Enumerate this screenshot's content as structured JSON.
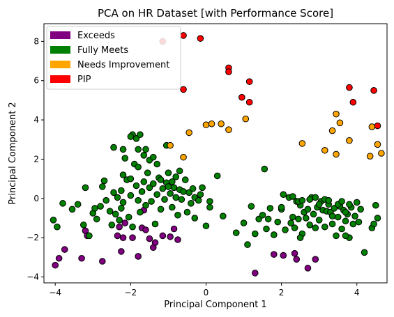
{
  "chart_data": {
    "type": "scatter",
    "title": "PCA on HR Dataset [with Performance Score]",
    "xlabel": "Principal Component 1",
    "ylabel": "Principal Component 2",
    "xlim": [
      -4.3,
      4.8
    ],
    "ylim": [
      -4.3,
      8.9
    ],
    "xticks": [
      -4,
      -2,
      0,
      2,
      4
    ],
    "yticks": [
      -4,
      -2,
      0,
      2,
      4,
      6,
      8
    ],
    "grid": false,
    "legend_position": "top-left",
    "series": [
      {
        "name": "Exceeds",
        "color": "#800080",
        "points": [
          [
            -4.0,
            -3.4
          ],
          [
            -3.9,
            -3.05
          ],
          [
            -3.75,
            -2.6
          ],
          [
            -3.3,
            -3.05
          ],
          [
            -3.2,
            -1.65
          ],
          [
            -3.15,
            -1.9
          ],
          [
            -2.75,
            -3.2
          ],
          [
            -2.35,
            -1.9
          ],
          [
            -2.3,
            -1.45
          ],
          [
            -2.25,
            -2.7
          ],
          [
            -2.2,
            -2.0
          ],
          [
            -2.15,
            -1.25
          ],
          [
            -1.95,
            -2.0
          ],
          [
            -1.8,
            -2.95
          ],
          [
            -1.7,
            -1.5
          ],
          [
            -1.6,
            -1.6
          ],
          [
            -1.5,
            -2.05
          ],
          [
            -1.4,
            -2.5
          ],
          [
            -1.35,
            -2.25
          ],
          [
            -1.15,
            -1.9
          ],
          [
            -0.95,
            -1.95
          ],
          [
            -0.85,
            -1.55
          ],
          [
            -0.75,
            -2.1
          ],
          [
            -1.65,
            -0.6
          ],
          [
            1.3,
            -3.8
          ],
          [
            1.8,
            -2.85
          ],
          [
            2.05,
            -2.9
          ],
          [
            2.35,
            -2.8
          ],
          [
            2.7,
            -3.55
          ],
          [
            2.9,
            -3.1
          ],
          [
            2.4,
            -3.1
          ]
        ]
      },
      {
        "name": "Fully Meets",
        "color": "#008000",
        "points": [
          [
            -4.05,
            -1.1
          ],
          [
            -3.95,
            -1.45
          ],
          [
            -3.8,
            -0.25
          ],
          [
            -3.55,
            -0.55
          ],
          [
            -3.4,
            -0.3
          ],
          [
            -3.25,
            -1.35
          ],
          [
            -3.2,
            0.55
          ],
          [
            -3.1,
            -1.9
          ],
          [
            -3.0,
            -0.75
          ],
          [
            -2.95,
            -0.5
          ],
          [
            -2.9,
            -1.05
          ],
          [
            -2.8,
            -0.4
          ],
          [
            -2.75,
            0.6
          ],
          [
            -2.7,
            0.9
          ],
          [
            -2.65,
            -0.1
          ],
          [
            -2.55,
            -0.65
          ],
          [
            -2.5,
            -1.35
          ],
          [
            -2.45,
            0.3
          ],
          [
            -2.4,
            -0.8
          ],
          [
            -2.35,
            0.05
          ],
          [
            -2.3,
            -1.1
          ],
          [
            -2.25,
            0.4
          ],
          [
            -2.2,
            -0.2
          ],
          [
            -2.15,
            2.05
          ],
          [
            -2.1,
            0.95
          ],
          [
            -2.05,
            -0.95
          ],
          [
            -2.0,
            0.15
          ],
          [
            -1.95,
            -1.45
          ],
          [
            -1.9,
            1.75
          ],
          [
            -1.85,
            0.65
          ],
          [
            -1.8,
            -0.1
          ],
          [
            -1.75,
            -0.7
          ],
          [
            -1.7,
            0.35
          ],
          [
            -1.65,
            0.85
          ],
          [
            -1.6,
            -0.35
          ],
          [
            -1.55,
            1.3
          ],
          [
            -1.5,
            0.55
          ],
          [
            -1.45,
            -0.15
          ],
          [
            -1.4,
            0.75
          ],
          [
            -1.35,
            -1.3
          ],
          [
            -1.3,
            0.2
          ],
          [
            -1.25,
            1.05
          ],
          [
            -1.2,
            -0.55
          ],
          [
            -1.15,
            0.5
          ],
          [
            -1.1,
            -0.05
          ],
          [
            -1.05,
            0.8
          ],
          [
            -1.0,
            1.3
          ],
          [
            -0.95,
            0.25
          ],
          [
            -0.9,
            -0.45
          ],
          [
            -0.85,
            0.55
          ],
          [
            -0.8,
            0.05
          ],
          [
            -0.75,
            -0.85
          ],
          [
            -0.7,
            0.45
          ],
          [
            -0.65,
            -0.05
          ],
          [
            -0.6,
            0.35
          ],
          [
            -0.55,
            0.95
          ],
          [
            -0.5,
            -0.7
          ],
          [
            -0.45,
            0.3
          ],
          [
            -0.4,
            -0.25
          ],
          [
            -0.35,
            0.5
          ],
          [
            -0.3,
            0.05
          ],
          [
            -0.2,
            -0.1
          ],
          [
            -0.1,
            0.55
          ],
          [
            0.0,
            -1.4
          ],
          [
            0.1,
            -0.15
          ],
          [
            -1.05,
            2.7
          ],
          [
            -1.3,
            1.75
          ],
          [
            -1.6,
            2.5
          ],
          [
            -1.85,
            3.05
          ],
          [
            -1.95,
            3.25
          ],
          [
            -2.0,
            3.15
          ],
          [
            -2.45,
            2.6
          ],
          [
            -2.2,
            2.5
          ],
          [
            -1.75,
            3.25
          ],
          [
            -1.65,
            2.2
          ],
          [
            -1.5,
            1.95
          ],
          [
            -1.4,
            2.1
          ],
          [
            -1.8,
            2.5
          ],
          [
            -2.2,
            1.2
          ],
          [
            -2.0,
            1.0
          ],
          [
            -1.8,
            1.6
          ],
          [
            -2.25,
            -0.5
          ],
          [
            -0.3,
            -1.0
          ],
          [
            -0.15,
            0.2
          ],
          [
            0.3,
            1.15
          ],
          [
            -0.7,
            1.4
          ],
          [
            -0.8,
            1.1
          ],
          [
            -1.0,
            0.6
          ],
          [
            -1.2,
            0.95
          ],
          [
            -0.9,
            0.85
          ],
          [
            0.1,
            -0.45
          ],
          [
            0.45,
            -0.9
          ],
          [
            0.8,
            -1.75
          ],
          [
            1.0,
            -1.25
          ],
          [
            1.1,
            -2.35
          ],
          [
            1.2,
            -0.4
          ],
          [
            1.3,
            -1.8
          ],
          [
            1.4,
            -1.05
          ],
          [
            1.5,
            -0.85
          ],
          [
            1.55,
            1.5
          ],
          [
            1.6,
            -1.55
          ],
          [
            1.7,
            -0.5
          ],
          [
            1.8,
            -1.85
          ],
          [
            1.9,
            -1.2
          ],
          [
            2.0,
            -0.55
          ],
          [
            2.05,
            0.2
          ],
          [
            2.1,
            -1.6
          ],
          [
            2.2,
            0.05
          ],
          [
            2.25,
            -1.25
          ],
          [
            2.3,
            -0.95
          ],
          [
            2.35,
            -1.5
          ],
          [
            2.4,
            -0.15
          ],
          [
            2.45,
            -1.05
          ],
          [
            2.5,
            -0.35
          ],
          [
            2.55,
            -1.8
          ],
          [
            2.6,
            -0.7
          ],
          [
            2.65,
            -1.0
          ],
          [
            2.7,
            -0.55
          ],
          [
            2.75,
            -1.35
          ],
          [
            2.8,
            0.05
          ],
          [
            2.85,
            -0.8
          ],
          [
            2.9,
            -1.5
          ],
          [
            2.95,
            -0.45
          ],
          [
            3.0,
            -1.1
          ],
          [
            3.05,
            -0.15
          ],
          [
            3.1,
            -0.6
          ],
          [
            3.15,
            -1.45
          ],
          [
            3.2,
            -0.65
          ],
          [
            3.25,
            -0.3
          ],
          [
            3.3,
            -0.7
          ],
          [
            3.35,
            -1.3
          ],
          [
            3.4,
            -0.5
          ],
          [
            3.45,
            -1.9
          ],
          [
            3.5,
            -0.95
          ],
          [
            3.55,
            -0.4
          ],
          [
            3.6,
            -1.55
          ],
          [
            3.65,
            -0.6
          ],
          [
            3.7,
            -1.15
          ],
          [
            3.75,
            -0.8
          ],
          [
            3.8,
            -2.0
          ],
          [
            3.85,
            -0.45
          ],
          [
            3.9,
            -1.3
          ],
          [
            3.95,
            -0.9
          ],
          [
            4.05,
            -1.2
          ],
          [
            4.2,
            -2.75
          ],
          [
            4.4,
            -1.5
          ],
          [
            4.5,
            -0.35
          ],
          [
            4.55,
            -1.0
          ],
          [
            2.3,
            0.1
          ],
          [
            2.45,
            -0.15
          ],
          [
            2.55,
            -0.1
          ],
          [
            2.75,
            -0.05
          ],
          [
            2.9,
            0.05
          ],
          [
            3.0,
            -0.3
          ],
          [
            3.15,
            -0.05
          ],
          [
            3.25,
            -0.1
          ],
          [
            3.35,
            -0.9
          ],
          [
            3.5,
            -0.3
          ],
          [
            3.6,
            -0.15
          ],
          [
            3.7,
            -0.7
          ],
          [
            3.8,
            -0.3
          ],
          [
            4.0,
            -0.2
          ],
          [
            4.1,
            -0.55
          ],
          [
            4.45,
            -1.3
          ],
          [
            3.7,
            -1.9
          ],
          [
            2.5,
            -2.0
          ],
          [
            1.65,
            -1.05
          ],
          [
            2.0,
            -0.45
          ]
        ]
      },
      {
        "name": "Needs Improvement",
        "color": "#FFA500",
        "points": [
          [
            -0.95,
            2.7
          ],
          [
            -0.6,
            2.1
          ],
          [
            -0.45,
            3.35
          ],
          [
            0.0,
            3.75
          ],
          [
            0.15,
            3.8
          ],
          [
            0.4,
            3.8
          ],
          [
            0.6,
            3.5
          ],
          [
            1.05,
            4.05
          ],
          [
            2.55,
            2.8
          ],
          [
            3.15,
            2.45
          ],
          [
            3.35,
            3.45
          ],
          [
            3.45,
            2.25
          ],
          [
            3.45,
            4.3
          ],
          [
            3.55,
            3.85
          ],
          [
            3.8,
            2.95
          ],
          [
            4.35,
            2.15
          ],
          [
            4.4,
            3.65
          ],
          [
            4.55,
            2.75
          ],
          [
            4.65,
            2.3
          ]
        ]
      },
      {
        "name": "PIP",
        "color": "#FF0000",
        "points": [
          [
            -1.15,
            8.0
          ],
          [
            -0.6,
            8.3
          ],
          [
            -0.15,
            8.15
          ],
          [
            -0.6,
            5.55
          ],
          [
            0.6,
            6.65
          ],
          [
            0.6,
            6.45
          ],
          [
            0.95,
            5.15
          ],
          [
            1.15,
            5.95
          ],
          [
            1.15,
            4.9
          ],
          [
            3.8,
            5.65
          ],
          [
            3.9,
            4.9
          ],
          [
            4.45,
            5.5
          ],
          [
            4.55,
            3.7
          ]
        ]
      }
    ]
  }
}
